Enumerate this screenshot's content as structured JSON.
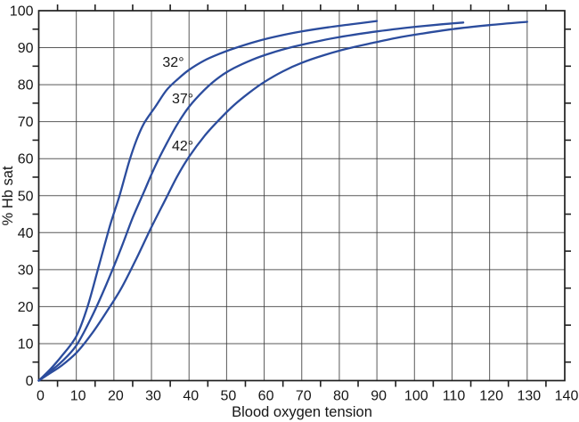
{
  "chart_data": {
    "type": "line",
    "title": "",
    "xlabel": "Blood oxygen tension",
    "ylabel": "% Hb sat",
    "xlim": [
      0,
      140
    ],
    "ylim": [
      0,
      100
    ],
    "x_ticks": [
      0,
      10,
      20,
      30,
      40,
      50,
      60,
      70,
      80,
      90,
      100,
      110,
      120,
      130,
      140
    ],
    "y_ticks": [
      0,
      10,
      20,
      30,
      40,
      50,
      60,
      70,
      80,
      90,
      100
    ],
    "minor_tick_step": 5,
    "grid": true,
    "legend_position": "none",
    "frame_color": "#1f1f1f",
    "grid_color": "#3d3d3d",
    "curve_color": "#2b4c9d",
    "series": [
      {
        "name": "32°",
        "label": "32°",
        "label_pos": {
          "x": 35.8,
          "y": 85.8
        },
        "points": [
          [
            0,
            0
          ],
          [
            3,
            3
          ],
          [
            6,
            6.5
          ],
          [
            10,
            12
          ],
          [
            13,
            20
          ],
          [
            16,
            31
          ],
          [
            19,
            42
          ],
          [
            21.5,
            50
          ],
          [
            24,
            59
          ],
          [
            26,
            65
          ],
          [
            28,
            69.5
          ],
          [
            31,
            74
          ],
          [
            34,
            78.5
          ],
          [
            37,
            81.5
          ],
          [
            40,
            84
          ],
          [
            44,
            86.5
          ],
          [
            48,
            88.3
          ],
          [
            52,
            89.8
          ],
          [
            58,
            91.7
          ],
          [
            64,
            93.2
          ],
          [
            70,
            94.4
          ],
          [
            77,
            95.5
          ],
          [
            83,
            96.3
          ],
          [
            90,
            97.2
          ]
        ]
      },
      {
        "name": "37°",
        "label": "37°",
        "label_pos": {
          "x": 38.3,
          "y": 76.0
        },
        "points": [
          [
            0,
            0
          ],
          [
            3,
            2.5
          ],
          [
            6,
            5
          ],
          [
            10,
            9.5
          ],
          [
            14,
            17
          ],
          [
            18,
            26
          ],
          [
            22,
            36
          ],
          [
            25,
            44
          ],
          [
            28,
            51
          ],
          [
            31,
            58
          ],
          [
            34,
            64
          ],
          [
            37,
            69.5
          ],
          [
            40,
            74
          ],
          [
            44,
            78.5
          ],
          [
            48,
            82
          ],
          [
            52,
            84.5
          ],
          [
            57,
            86.8
          ],
          [
            62,
            88.6
          ],
          [
            68,
            90.3
          ],
          [
            75,
            91.9
          ],
          [
            82,
            93.2
          ],
          [
            90,
            94.4
          ],
          [
            98,
            95.4
          ],
          [
            106,
            96.2
          ],
          [
            113,
            96.8
          ]
        ]
      },
      {
        "name": "42°",
        "label": "42°",
        "label_pos": {
          "x": 38.3,
          "y": 63.2
        },
        "points": [
          [
            0,
            0
          ],
          [
            3,
            2
          ],
          [
            6,
            4
          ],
          [
            10,
            7.5
          ],
          [
            14,
            12.5
          ],
          [
            18,
            18.5
          ],
          [
            22,
            25
          ],
          [
            26,
            33
          ],
          [
            30,
            41.5
          ],
          [
            34,
            49.5
          ],
          [
            37,
            55.5
          ],
          [
            40,
            60.5
          ],
          [
            44,
            66
          ],
          [
            48,
            70.5
          ],
          [
            52,
            74.5
          ],
          [
            56,
            77.8
          ],
          [
            60,
            80.7
          ],
          [
            65,
            83.6
          ],
          [
            70,
            85.9
          ],
          [
            76,
            88
          ],
          [
            82,
            89.7
          ],
          [
            88,
            91.1
          ],
          [
            95,
            92.6
          ],
          [
            102,
            93.8
          ],
          [
            110,
            95
          ],
          [
            120,
            96.1
          ],
          [
            130,
            97
          ]
        ]
      }
    ]
  }
}
